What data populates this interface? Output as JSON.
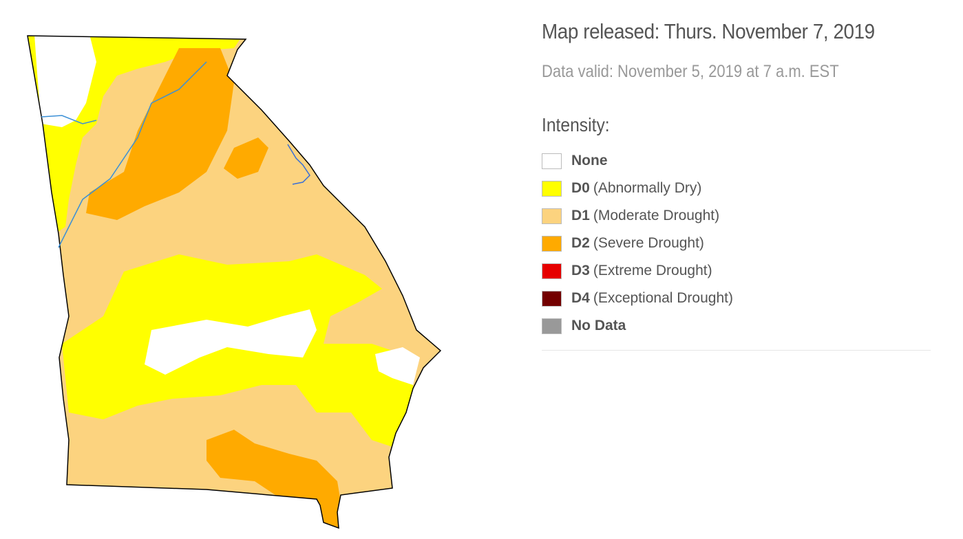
{
  "header": {
    "released": "Map released: Thurs. November 7, 2019",
    "valid": "Data valid: November 5, 2019 at 7 a.m. EST"
  },
  "legend": {
    "title": "Intensity:",
    "items": [
      {
        "code": "None",
        "color": "#ffffff"
      },
      {
        "code": "D0",
        "desc": "(Abnormally Dry)",
        "color": "#ffff00"
      },
      {
        "code": "D1",
        "desc": "(Moderate Drought)",
        "color": "#fcd37f"
      },
      {
        "code": "D2",
        "desc": "(Severe Drought)",
        "color": "#ffaa00"
      },
      {
        "code": "D3",
        "desc": "(Extreme Drought)",
        "color": "#e60000"
      },
      {
        "code": "D4",
        "desc": "(Exceptional Drought)",
        "color": "#730000"
      },
      {
        "code": "No Data",
        "color": "#999999"
      }
    ]
  }
}
